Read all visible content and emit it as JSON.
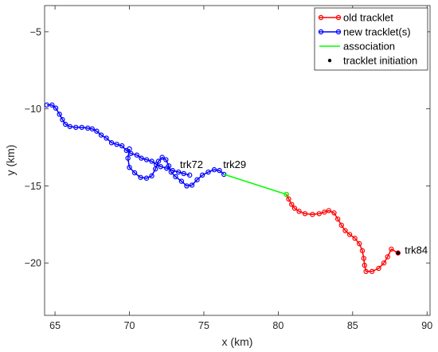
{
  "chart_data": {
    "type": "line",
    "xlabel": "x (km)",
    "ylabel": "y (km)",
    "xlim": [
      64.3,
      90.2
    ],
    "ylim": [
      -23.4,
      -3.3
    ],
    "xticks": [
      65,
      70,
      75,
      80,
      85,
      90
    ],
    "yticks": [
      -5,
      -10,
      -15,
      -20
    ],
    "xtick_labels": [
      "65",
      "70",
      "75",
      "80",
      "85",
      "90"
    ],
    "ytick_labels": [
      "−5",
      "−10",
      "−15",
      "−20"
    ],
    "grid": false,
    "legend_position": "top-right",
    "legend": [
      {
        "label": "old tracklet",
        "kind": "line-marker",
        "color": "#ff0000"
      },
      {
        "label": "new tracklet(s)",
        "kind": "line-marker",
        "color": "#0000ff"
      },
      {
        "label": "association",
        "kind": "line",
        "color": "#00ff00"
      },
      {
        "label": "tracklet initiation",
        "kind": "dot",
        "color": "#000000"
      }
    ],
    "annotations": [
      {
        "text": "trk72",
        "x": 73.4,
        "y": -13.9
      },
      {
        "text": "trk29",
        "x": 76.3,
        "y": -13.9
      },
      {
        "text": "trk84",
        "x": 88.5,
        "y": -19.45
      }
    ],
    "series": [
      {
        "name": "new tracklet(s)",
        "color": "#0000ff",
        "segments": [
          [
            [
              64.45,
              -9.75
            ],
            [
              64.8,
              -9.75
            ],
            [
              65.05,
              -9.95
            ],
            [
              65.3,
              -10.35
            ],
            [
              65.5,
              -10.7
            ],
            [
              65.7,
              -11.0
            ],
            [
              66.0,
              -11.15
            ],
            [
              66.4,
              -11.2
            ],
            [
              66.8,
              -11.2
            ],
            [
              67.2,
              -11.25
            ],
            [
              67.5,
              -11.3
            ],
            [
              67.8,
              -11.45
            ],
            [
              68.1,
              -11.7
            ],
            [
              68.45,
              -11.9
            ],
            [
              68.8,
              -12.2
            ],
            [
              69.15,
              -12.3
            ],
            [
              69.5,
              -12.4
            ],
            [
              69.8,
              -12.7
            ],
            [
              70.1,
              -12.9
            ],
            [
              70.5,
              -13.0
            ],
            [
              70.8,
              -13.2
            ],
            [
              71.15,
              -13.3
            ],
            [
              71.5,
              -13.4
            ],
            [
              71.8,
              -13.6
            ],
            [
              72.1,
              -13.75
            ],
            [
              72.5,
              -13.85
            ],
            [
              72.9,
              -14.0
            ],
            [
              73.3,
              -14.1
            ],
            [
              73.65,
              -14.2
            ],
            [
              74.05,
              -14.3
            ]
          ],
          [
            [
              70.0,
              -12.6
            ],
            [
              69.9,
              -13.2
            ],
            [
              70.0,
              -13.8
            ],
            [
              70.35,
              -14.15
            ],
            [
              70.75,
              -14.45
            ],
            [
              71.15,
              -14.5
            ],
            [
              71.5,
              -14.35
            ],
            [
              71.75,
              -13.9
            ],
            [
              71.95,
              -13.4
            ],
            [
              72.2,
              -13.15
            ],
            [
              72.45,
              -13.3
            ],
            [
              72.65,
              -13.7
            ],
            [
              72.8,
              -14.1
            ],
            [
              73.1,
              -14.4
            ],
            [
              73.5,
              -14.7
            ],
            [
              73.85,
              -15.0
            ],
            [
              74.2,
              -14.95
            ],
            [
              74.55,
              -14.6
            ],
            [
              74.9,
              -14.3
            ],
            [
              75.3,
              -14.1
            ],
            [
              75.7,
              -13.95
            ],
            [
              76.05,
              -14.0
            ],
            [
              76.35,
              -14.25
            ]
          ]
        ]
      },
      {
        "name": "old tracklet",
        "color": "#ff0000",
        "segments": [
          [
            [
              80.55,
              -15.55
            ],
            [
              80.7,
              -15.85
            ],
            [
              80.9,
              -16.2
            ],
            [
              81.1,
              -16.45
            ],
            [
              81.4,
              -16.65
            ],
            [
              81.8,
              -16.8
            ],
            [
              82.3,
              -16.85
            ],
            [
              82.75,
              -16.8
            ],
            [
              83.1,
              -16.7
            ],
            [
              83.4,
              -16.6
            ],
            [
              83.75,
              -16.75
            ],
            [
              84.0,
              -17.15
            ],
            [
              84.25,
              -17.55
            ],
            [
              84.5,
              -17.9
            ],
            [
              84.8,
              -18.15
            ],
            [
              85.15,
              -18.4
            ],
            [
              85.45,
              -18.75
            ],
            [
              85.65,
              -19.2
            ],
            [
              85.75,
              -19.7
            ],
            [
              85.8,
              -20.15
            ],
            [
              85.9,
              -20.55
            ],
            [
              86.3,
              -20.55
            ],
            [
              86.75,
              -20.35
            ],
            [
              87.1,
              -20.0
            ],
            [
              87.35,
              -19.6
            ],
            [
              87.6,
              -19.1
            ],
            [
              88.05,
              -19.35
            ]
          ]
        ]
      },
      {
        "name": "association",
        "color": "#00ff00",
        "segments": [
          [
            [
              76.35,
              -14.25
            ],
            [
              80.55,
              -15.55
            ]
          ]
        ]
      },
      {
        "name": "tracklet initiation",
        "color": "#000000",
        "points": [
          [
            88.05,
            -19.35
          ]
        ]
      }
    ]
  }
}
